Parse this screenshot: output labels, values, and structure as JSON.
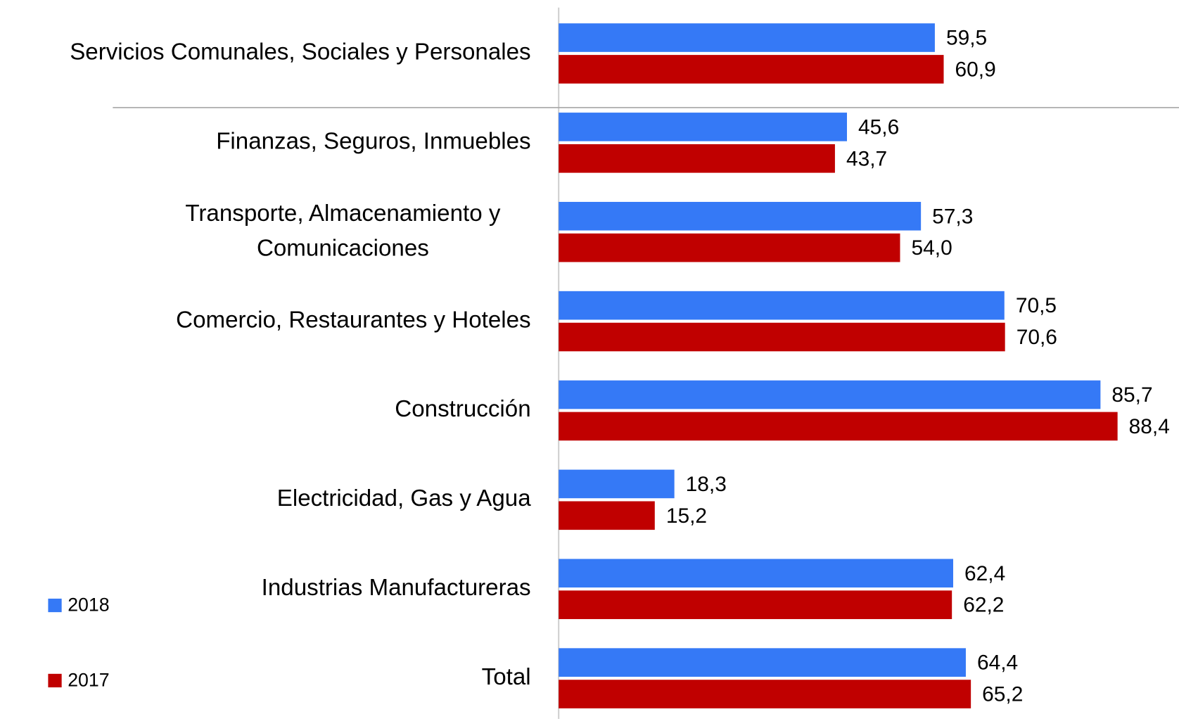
{
  "chart_data": {
    "type": "barh",
    "categories": [
      "Servicios Comunales, Sociales y Personales",
      "Finanzas, Seguros, Inmuebles",
      "Transporte, Almacenamiento y\nComunicaciones",
      "Comercio, Restaurantes y Hoteles",
      "Construcción",
      "Electricidad, Gas y Agua",
      "Industrias Manufactureras",
      "Total"
    ],
    "series": [
      {
        "name": "2018",
        "color": "#3579f6",
        "values": [
          59.5,
          45.6,
          57.3,
          70.5,
          85.7,
          18.3,
          62.4,
          64.4
        ],
        "value_labels": [
          "59,5",
          "45,6",
          "57,3",
          "70,5",
          "85,7",
          "18,3",
          "62,4",
          "64,4"
        ]
      },
      {
        "name": "2017",
        "color": "#c00000",
        "values": [
          60.9,
          43.7,
          54.0,
          70.6,
          88.4,
          15.2,
          62.2,
          65.2
        ],
        "value_labels": [
          "60,9",
          "43,7",
          "54,0",
          "70,6",
          "88,4",
          "15,2",
          "62,2",
          "65,2"
        ]
      }
    ],
    "xlim": [
      0,
      98
    ],
    "legend": "lower left"
  }
}
